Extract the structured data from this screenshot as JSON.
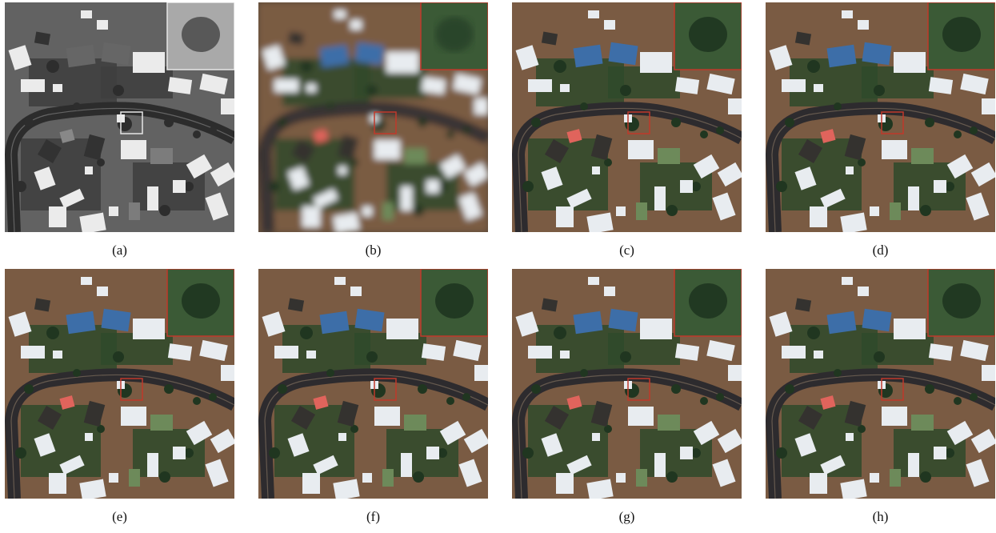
{
  "panels": [
    {
      "id": "a",
      "caption": "(a)",
      "style": "pan",
      "box_color": "#e6e6e6"
    },
    {
      "id": "b",
      "caption": "(b)",
      "style": "blur",
      "box_color": "#c0392b"
    },
    {
      "id": "c",
      "caption": "(c)",
      "style": "sharp",
      "box_color": "#c0392b"
    },
    {
      "id": "d",
      "caption": "(d)",
      "style": "sharp",
      "box_color": "#c0392b"
    },
    {
      "id": "e",
      "caption": "(e)",
      "style": "sharp",
      "box_color": "#c0392b"
    },
    {
      "id": "f",
      "caption": "(f)",
      "style": "sharp",
      "box_color": "#c0392b"
    },
    {
      "id": "g",
      "caption": "(g)",
      "style": "sharp",
      "box_color": "#c0392b"
    },
    {
      "id": "h",
      "caption": "(h)",
      "style": "sharp",
      "box_color": "#c0392b"
    }
  ],
  "colors": {
    "soil": "#7a5b43",
    "grass": "#2f4a2a",
    "road": "#2d2b2e",
    "roof_white": "#e8ecf0",
    "roof_blue": "#3d6ea8",
    "roof_red": "#e0645c",
    "roof_green": "#6d8a5a",
    "roof_dark": "#34322f",
    "tree": "#203620"
  }
}
